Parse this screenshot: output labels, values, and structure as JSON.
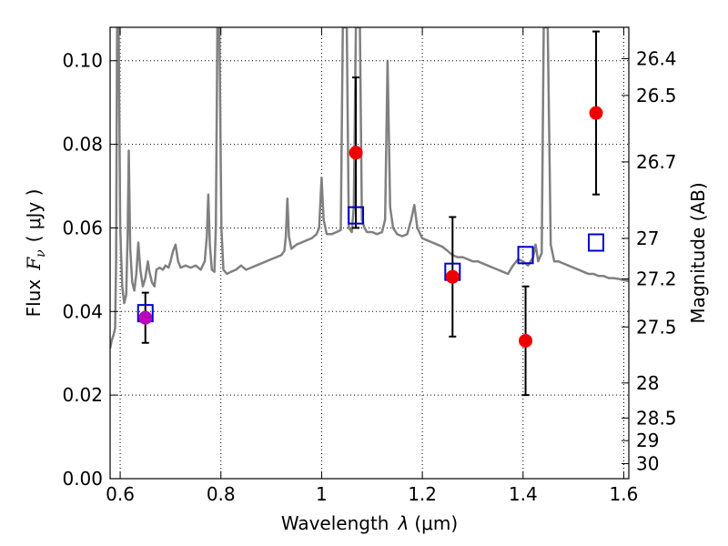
{
  "chart_data": {
    "type": "scatter",
    "xlabel_prefix": "Wavelength",
    "xlabel_symbol": "λ",
    "xlabel_unit": "(μm)",
    "ylabel_prefix": "Flux",
    "ylabel_symbol": "F",
    "ylabel_subscript": "ν",
    "ylabel_unit": "( μJy )",
    "y2label": "Magnitude (AB)",
    "xlim": [
      0.58,
      1.61
    ],
    "ylim": [
      0.0,
      0.108
    ],
    "x_ticks": [
      0.6,
      0.8,
      1.0,
      1.2,
      1.4,
      1.6
    ],
    "x_tick_labels": [
      "0.6",
      "0.8",
      "1",
      "1.2",
      "1.4",
      "1.6"
    ],
    "y_ticks": [
      0.0,
      0.02,
      0.04,
      0.06,
      0.08,
      0.1
    ],
    "y_tick_labels": [
      "0.00",
      "0.02",
      "0.04",
      "0.06",
      "0.08",
      "0.10"
    ],
    "y2_ticks": [
      {
        "flux": 0.1005,
        "label": "26.4"
      },
      {
        "flux": 0.0917,
        "label": "26.5"
      },
      {
        "flux": 0.0758,
        "label": "26.7"
      },
      {
        "flux": 0.0575,
        "label": "27"
      },
      {
        "flux": 0.0478,
        "label": "27.2"
      },
      {
        "flux": 0.0363,
        "label": "27.5"
      },
      {
        "flux": 0.0229,
        "label": "28"
      },
      {
        "flux": 0.0145,
        "label": "28.5"
      },
      {
        "flux": 0.0091,
        "label": "29"
      },
      {
        "flux": 0.0036,
        "label": "30"
      }
    ],
    "grid": true,
    "colors": {
      "spectrum": "#808080",
      "observed": "#ee0000",
      "model": "#0000cc",
      "blend": "#bb00bb",
      "errorbar": "#000000"
    },
    "observed": [
      {
        "x": 0.65,
        "y": 0.0385,
        "yerr_low": 0.006,
        "yerr_high": 0.006
      },
      {
        "x": 1.068,
        "y": 0.078,
        "yerr_low": 0.018,
        "yerr_high": 0.018
      },
      {
        "x": 1.26,
        "y": 0.0483,
        "yerr_low": 0.0143,
        "yerr_high": 0.0143
      },
      {
        "x": 1.405,
        "y": 0.033,
        "yerr_low": 0.013,
        "yerr_high": 0.013
      },
      {
        "x": 1.545,
        "y": 0.0875,
        "yerr_low": 0.0195,
        "yerr_high": 0.0195
      }
    ],
    "model": [
      {
        "x": 0.65,
        "y": 0.0396
      },
      {
        "x": 1.068,
        "y": 0.063
      },
      {
        "x": 1.26,
        "y": 0.0495
      },
      {
        "x": 1.405,
        "y": 0.0535
      },
      {
        "x": 1.545,
        "y": 0.0565
      }
    ],
    "spectrum": [
      [
        0.58,
        0.0312
      ],
      [
        0.583,
        0.033
      ],
      [
        0.587,
        0.0345
      ],
      [
        0.59,
        0.036
      ],
      [
        0.592,
        0.052
      ],
      [
        0.594,
        0.108
      ],
      [
        0.597,
        0.108
      ],
      [
        0.6,
        0.06
      ],
      [
        0.604,
        0.046
      ],
      [
        0.608,
        0.042
      ],
      [
        0.612,
        0.044
      ],
      [
        0.615,
        0.06
      ],
      [
        0.617,
        0.0785
      ],
      [
        0.62,
        0.055
      ],
      [
        0.624,
        0.047
      ],
      [
        0.628,
        0.045
      ],
      [
        0.632,
        0.049
      ],
      [
        0.636,
        0.0565
      ],
      [
        0.64,
        0.05
      ],
      [
        0.645,
        0.046
      ],
      [
        0.65,
        0.048
      ],
      [
        0.655,
        0.052
      ],
      [
        0.658,
        0.0495
      ],
      [
        0.663,
        0.047
      ],
      [
        0.668,
        0.046
      ],
      [
        0.672,
        0.05
      ],
      [
        0.678,
        0.0505
      ],
      [
        0.685,
        0.05
      ],
      [
        0.69,
        0.051
      ],
      [
        0.696,
        0.0505
      ],
      [
        0.7,
        0.052
      ],
      [
        0.705,
        0.0545
      ],
      [
        0.71,
        0.056
      ],
      [
        0.715,
        0.052
      ],
      [
        0.72,
        0.0505
      ],
      [
        0.73,
        0.051
      ],
      [
        0.74,
        0.0505
      ],
      [
        0.75,
        0.051
      ],
      [
        0.76,
        0.05
      ],
      [
        0.768,
        0.052
      ],
      [
        0.772,
        0.058
      ],
      [
        0.775,
        0.068
      ],
      [
        0.778,
        0.056
      ],
      [
        0.782,
        0.05
      ],
      [
        0.787,
        0.0495
      ],
      [
        0.79,
        0.06
      ],
      [
        0.793,
        0.108
      ],
      [
        0.797,
        0.108
      ],
      [
        0.801,
        0.06
      ],
      [
        0.805,
        0.05
      ],
      [
        0.812,
        0.049
      ],
      [
        0.82,
        0.0495
      ],
      [
        0.83,
        0.05
      ],
      [
        0.84,
        0.051
      ],
      [
        0.85,
        0.05
      ],
      [
        0.86,
        0.0505
      ],
      [
        0.87,
        0.051
      ],
      [
        0.88,
        0.0515
      ],
      [
        0.89,
        0.052
      ],
      [
        0.9,
        0.0525
      ],
      [
        0.91,
        0.053
      ],
      [
        0.92,
        0.0535
      ],
      [
        0.926,
        0.0545
      ],
      [
        0.929,
        0.058
      ],
      [
        0.932,
        0.067
      ],
      [
        0.935,
        0.058
      ],
      [
        0.94,
        0.055
      ],
      [
        0.95,
        0.056
      ],
      [
        0.96,
        0.0565
      ],
      [
        0.97,
        0.057
      ],
      [
        0.98,
        0.0575
      ],
      [
        0.99,
        0.0585
      ],
      [
        0.995,
        0.06
      ],
      [
        1.0,
        0.072
      ],
      [
        1.004,
        0.062
      ],
      [
        1.01,
        0.0585
      ],
      [
        1.02,
        0.0585
      ],
      [
        1.03,
        0.059
      ],
      [
        1.038,
        0.0595
      ],
      [
        1.042,
        0.108
      ],
      [
        1.05,
        0.108
      ],
      [
        1.054,
        0.06
      ],
      [
        1.06,
        0.059
      ],
      [
        1.064,
        0.065
      ],
      [
        1.068,
        0.108
      ],
      [
        1.076,
        0.108
      ],
      [
        1.08,
        0.062
      ],
      [
        1.085,
        0.06
      ],
      [
        1.09,
        0.059
      ],
      [
        1.1,
        0.059
      ],
      [
        1.11,
        0.0585
      ],
      [
        1.12,
        0.059
      ],
      [
        1.126,
        0.062
      ],
      [
        1.131,
        0.1
      ],
      [
        1.136,
        0.065
      ],
      [
        1.142,
        0.06
      ],
      [
        1.15,
        0.0585
      ],
      [
        1.16,
        0.058
      ],
      [
        1.17,
        0.0585
      ],
      [
        1.178,
        0.062
      ],
      [
        1.184,
        0.0655
      ],
      [
        1.19,
        0.06
      ],
      [
        1.2,
        0.0575
      ],
      [
        1.21,
        0.057
      ],
      [
        1.22,
        0.0565
      ],
      [
        1.23,
        0.056
      ],
      [
        1.24,
        0.0555
      ],
      [
        1.25,
        0.0545
      ],
      [
        1.26,
        0.0535
      ],
      [
        1.27,
        0.053
      ],
      [
        1.28,
        0.053
      ],
      [
        1.29,
        0.0525
      ],
      [
        1.3,
        0.052
      ],
      [
        1.31,
        0.052
      ],
      [
        1.32,
        0.0515
      ],
      [
        1.33,
        0.051
      ],
      [
        1.34,
        0.0505
      ],
      [
        1.35,
        0.05
      ],
      [
        1.36,
        0.0495
      ],
      [
        1.37,
        0.049
      ],
      [
        1.38,
        0.051
      ],
      [
        1.39,
        0.0525
      ],
      [
        1.4,
        0.052
      ],
      [
        1.41,
        0.051
      ],
      [
        1.42,
        0.053
      ],
      [
        1.425,
        0.056
      ],
      [
        1.43,
        0.052
      ],
      [
        1.437,
        0.054
      ],
      [
        1.441,
        0.108
      ],
      [
        1.449,
        0.108
      ],
      [
        1.455,
        0.056
      ],
      [
        1.462,
        0.052
      ],
      [
        1.47,
        0.052
      ],
      [
        1.48,
        0.0515
      ],
      [
        1.49,
        0.051
      ],
      [
        1.5,
        0.0505
      ],
      [
        1.51,
        0.05
      ],
      [
        1.52,
        0.0495
      ],
      [
        1.53,
        0.049
      ],
      [
        1.54,
        0.049
      ],
      [
        1.55,
        0.0485
      ],
      [
        1.56,
        0.0485
      ],
      [
        1.57,
        0.048
      ],
      [
        1.58,
        0.048
      ],
      [
        1.59,
        0.0478
      ],
      [
        1.6,
        0.0475
      ],
      [
        1.61,
        0.0473
      ]
    ]
  }
}
